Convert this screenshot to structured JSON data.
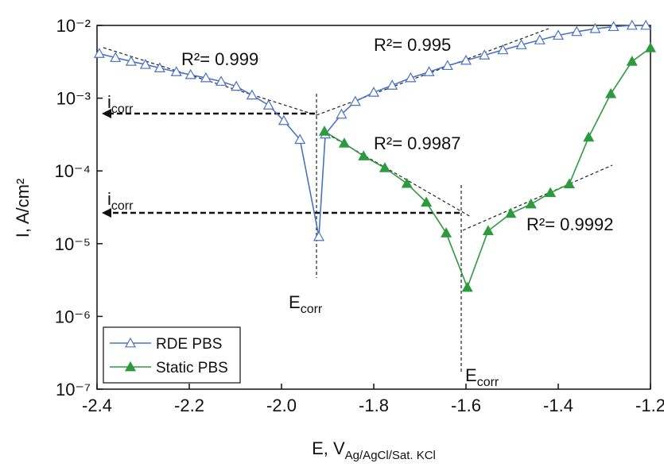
{
  "chart_data": {
    "type": "line",
    "xlabel": "E, V",
    "xlabel_sub": "Ag/AgCl/Sat. KCl",
    "ylabel": "I, A/cm²",
    "ylog": true,
    "xlim": [
      -2.4,
      -1.2
    ],
    "xticks": [
      -2.4,
      -2.2,
      {
        "value": -2,
        "label": "-2.0"
      },
      -1.8,
      -1.6,
      -1.4,
      -1.2
    ],
    "ylim": [
      1e-07,
      0.01
    ],
    "yticks": [
      {
        "value": 1e-07,
        "label": "10⁻⁷"
      },
      {
        "value": 1e-06,
        "label": "10⁻⁶"
      },
      {
        "value": 1e-05,
        "label": "10⁻⁵"
      },
      {
        "value": 0.0001,
        "label": "10⁻⁴"
      },
      {
        "value": 0.001,
        "label": "10⁻³"
      },
      {
        "value": 0.01,
        "label": "10⁻²"
      }
    ],
    "legend": "lower left",
    "series": [
      {
        "name": "RDE PBS",
        "color": "#4a72c4",
        "marker": "open-triangle",
        "x": [
          -2.395,
          -2.36,
          -2.326,
          -2.295,
          -2.264,
          -2.228,
          -2.197,
          -2.164,
          -2.131,
          -2.098,
          -2.064,
          -2.028,
          -1.995,
          -1.96,
          -1.919,
          -1.905,
          -1.87,
          -1.84,
          -1.8,
          -1.76,
          -1.72,
          -1.68,
          -1.64,
          -1.6,
          -1.56,
          -1.52,
          -1.48,
          -1.44,
          -1.4,
          -1.36,
          -1.32,
          -1.28,
          -1.24,
          -1.21
        ],
        "values": [
          0.0041,
          0.0036,
          0.0032,
          0.0029,
          0.0026,
          0.0023,
          0.0021,
          0.0019,
          0.0017,
          0.00145,
          0.0011,
          0.0008,
          0.00049,
          0.00027,
          1.25e-05,
          0.00032,
          0.0006,
          0.0009,
          0.0012,
          0.0015,
          0.0019,
          0.0023,
          0.0028,
          0.0033,
          0.0039,
          0.0046,
          0.0054,
          0.0063,
          0.0073,
          0.0082,
          0.009,
          0.0096,
          0.01,
          0.01
        ]
      },
      {
        "name": "Static PBS",
        "color": "#2e9a3e",
        "marker": "filled-triangle",
        "x": [
          -1.907,
          -1.864,
          -1.822,
          -1.776,
          -1.728,
          -1.686,
          -1.643,
          -1.597,
          -1.552,
          -1.503,
          -1.459,
          -1.417,
          -1.376,
          -1.334,
          -1.286,
          -1.24,
          -1.2
        ],
        "values": [
          0.00035,
          0.00024,
          0.00016,
          0.00011,
          6.7e-05,
          3.7e-05,
          1.4e-05,
          2.5e-06,
          1.5e-05,
          2.6e-05,
          3.5e-05,
          5e-05,
          6.6e-05,
          0.00029,
          0.00115,
          0.0032,
          0.0049
        ]
      }
    ],
    "annotations": [
      {
        "text": "R²= 0.999"
      },
      {
        "text": "R²= 0.995"
      },
      {
        "text": "R²= 0.9987"
      },
      {
        "text": "R²= 0.9992"
      },
      {
        "text": "i",
        "sub": "corr"
      },
      {
        "text": "i",
        "sub": "corr"
      },
      {
        "text": "E",
        "sub": "corr"
      },
      {
        "text": "E",
        "sub": "corr"
      }
    ]
  }
}
